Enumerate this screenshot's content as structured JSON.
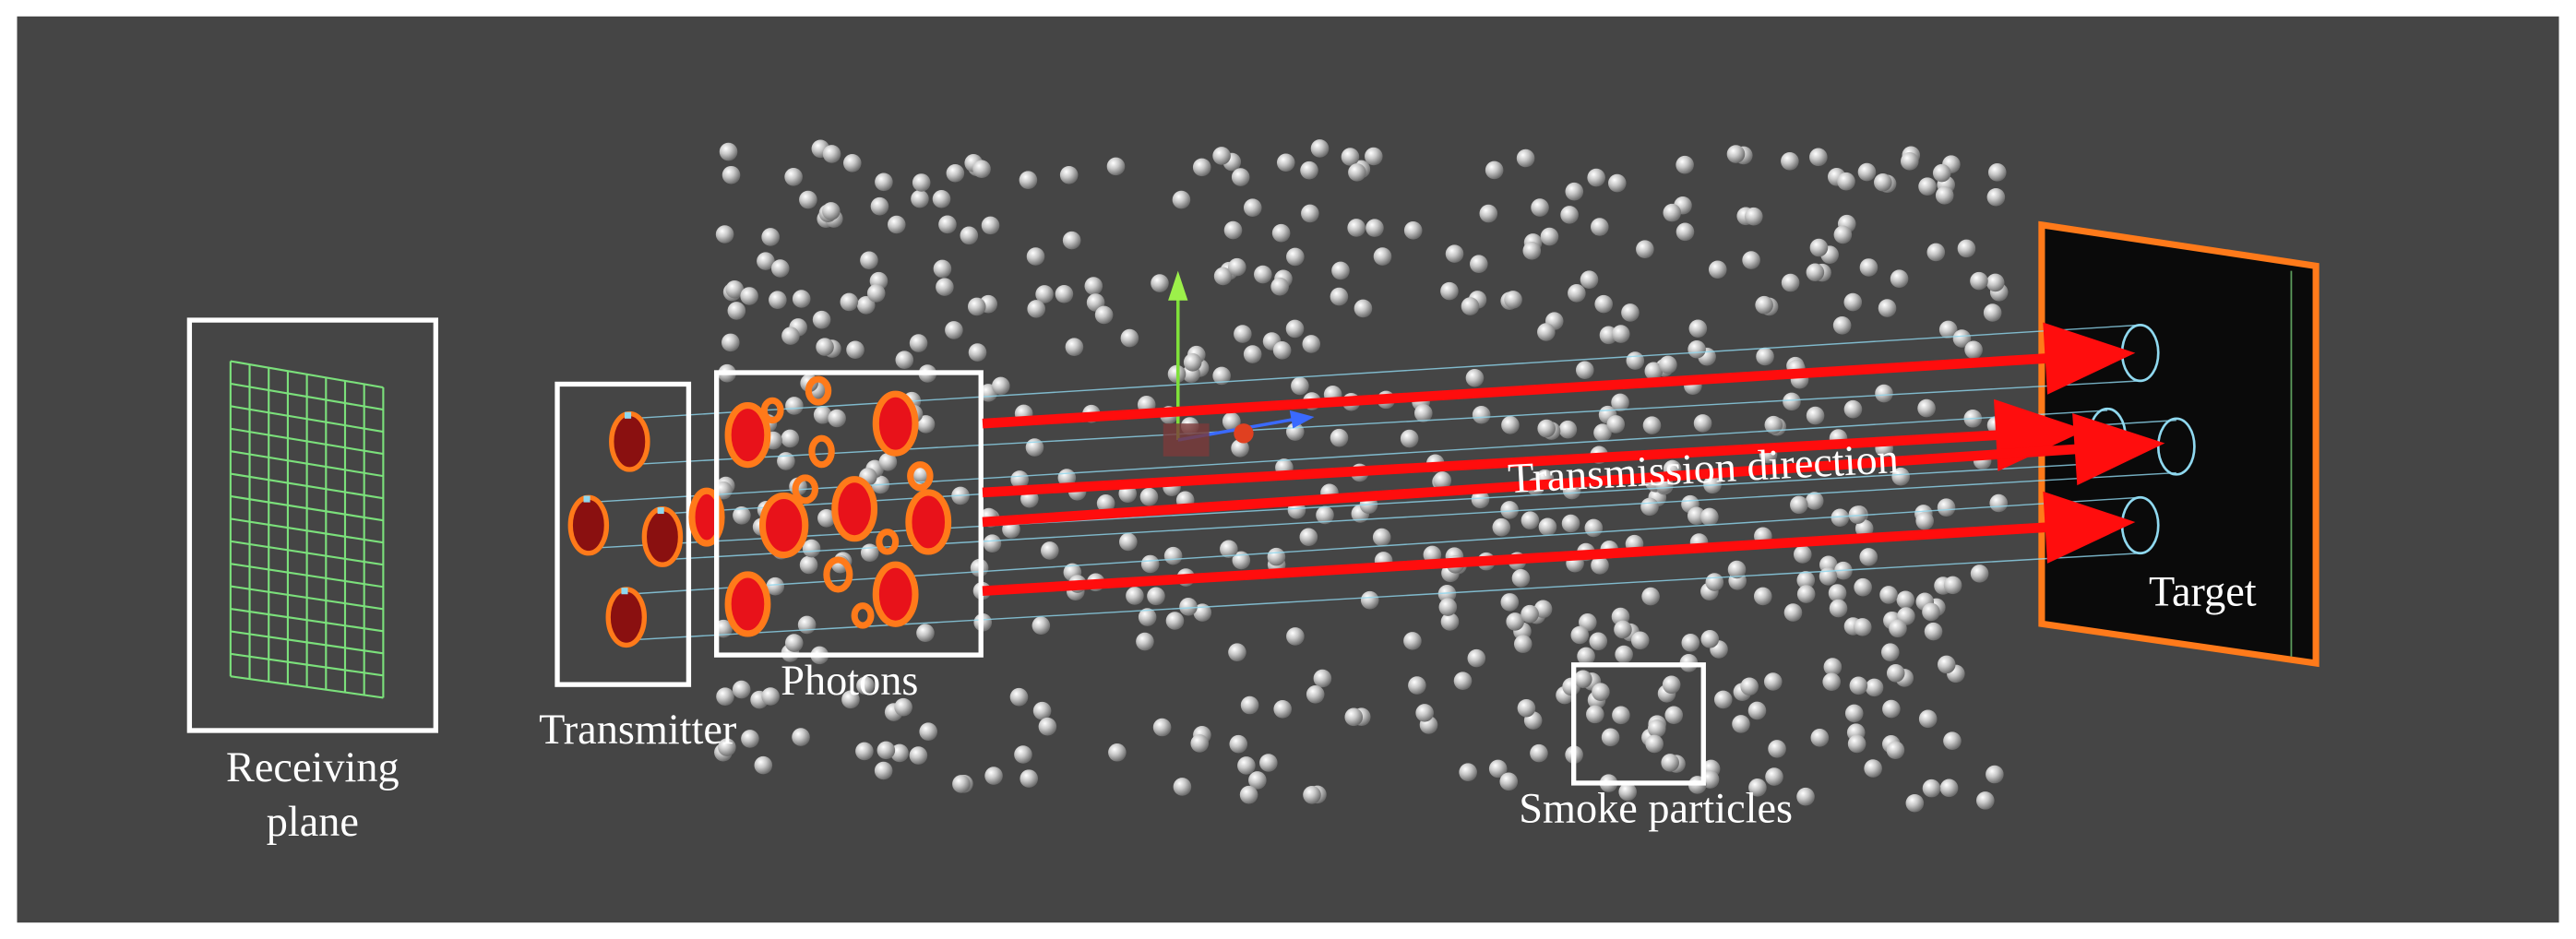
{
  "labels": {
    "receiving_plane": [
      "Receiving",
      "plane"
    ],
    "transmitter": "Transmitter",
    "photons": "Photons",
    "transmission_direction": "Transmission direction",
    "target": "Target",
    "smoke_particles": "Smoke particles"
  }
}
